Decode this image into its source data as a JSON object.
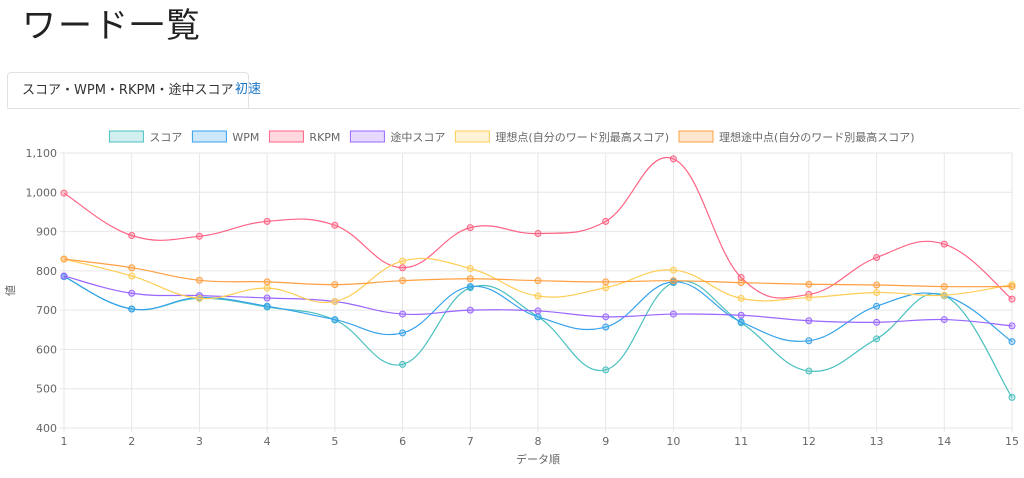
{
  "page": {
    "title": "ワード一覧"
  },
  "tabs": [
    {
      "label": "スコア・WPM・RKPM・途中スコア",
      "active": true
    },
    {
      "label": "初速",
      "active": false
    }
  ],
  "chart_data": {
    "type": "line",
    "xlabel": "データ順",
    "ylabel": "値",
    "ylim": [
      400,
      1100
    ],
    "y_ticks": [
      400,
      500,
      600,
      700,
      800,
      900,
      1000,
      1100
    ],
    "y_tick_labels": [
      "400",
      "500",
      "600",
      "700",
      "800",
      "900",
      "1,000",
      "1,100"
    ],
    "x": [
      1,
      2,
      3,
      4,
      5,
      6,
      7,
      8,
      9,
      10,
      11,
      12,
      13,
      14,
      15
    ],
    "legend_position": "top",
    "grid": true,
    "series": [
      {
        "name": "スコア",
        "color": "#4bc0c0",
        "values": [
          785,
          703,
          730,
          708,
          675,
          562,
          757,
          683,
          548,
          770,
          668,
          545,
          627,
          737,
          478
        ]
      },
      {
        "name": "WPM",
        "color": "#36a2eb",
        "values": [
          786,
          703,
          732,
          710,
          676,
          642,
          760,
          683,
          657,
          772,
          670,
          622,
          710,
          737,
          620
        ]
      },
      {
        "name": "RKPM",
        "color": "#ff6384",
        "values": [
          998,
          890,
          888,
          926,
          916,
          808,
          910,
          895,
          926,
          1085,
          783,
          740,
          834,
          868,
          728
        ]
      },
      {
        "name": "途中スコア",
        "color": "#9966ff",
        "values": [
          787,
          743,
          737,
          731,
          722,
          690,
          700,
          698,
          683,
          690,
          687,
          673,
          669,
          676,
          660
        ]
      },
      {
        "name": "理想点(自分のワード別最高スコア)",
        "color": "#ffcd56",
        "values": [
          830,
          787,
          730,
          756,
          722,
          825,
          806,
          736,
          757,
          802,
          730,
          732,
          745,
          738,
          765
        ]
      },
      {
        "name": "理想途中点(自分のワード別最高スコア)",
        "color": "#ff9f40",
        "values": [
          830,
          808,
          776,
          772,
          765,
          775,
          780,
          775,
          772,
          775,
          770,
          766,
          764,
          760,
          760
        ]
      }
    ]
  }
}
